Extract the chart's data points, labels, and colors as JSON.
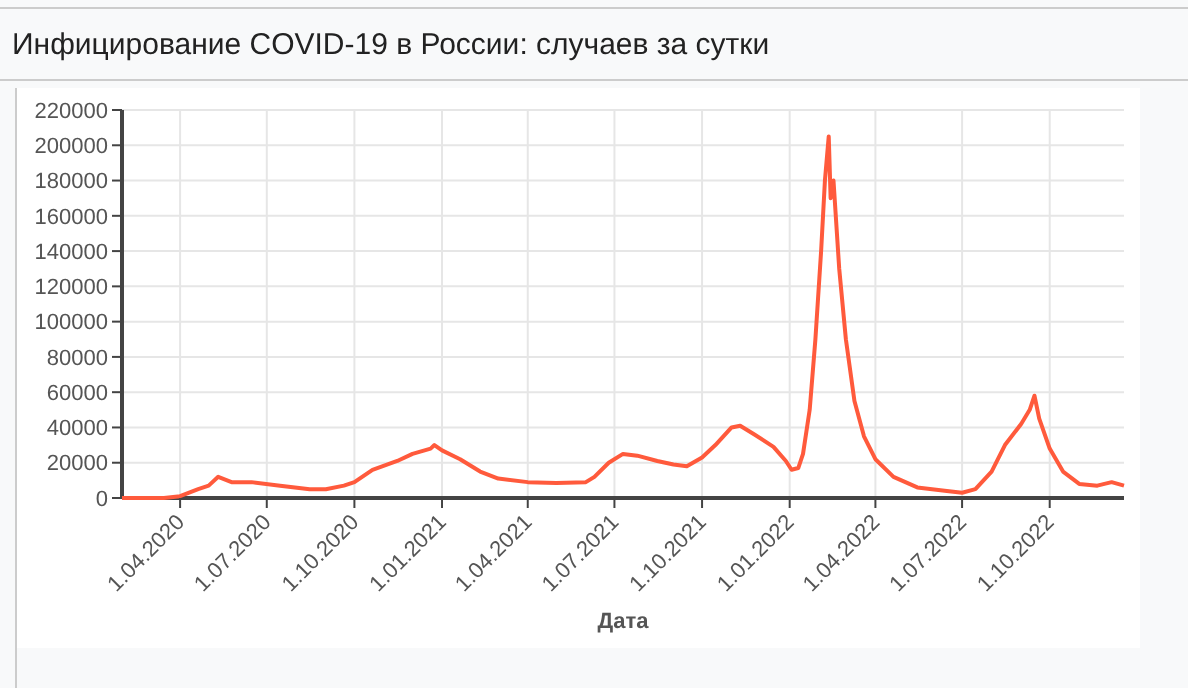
{
  "chart_data": {
    "type": "line",
    "title": "Инфицирование COVID-19 в России: случаев за сутки",
    "xlabel": "Дата",
    "grid": true,
    "marker": "none",
    "line_style": "solid",
    "xlim": [
      "2020-01-31",
      "2022-12-18"
    ],
    "xticks": [
      {
        "value": "2020-04-01",
        "label": "1.04.2020"
      },
      {
        "value": "2020-07-01",
        "label": "1.07.2020"
      },
      {
        "value": "2020-10-01",
        "label": "1.10.2020"
      },
      {
        "value": "2021-01-01",
        "label": "1.01.2021"
      },
      {
        "value": "2021-04-01",
        "label": "1.04.2021"
      },
      {
        "value": "2021-07-01",
        "label": "1.07.2021"
      },
      {
        "value": "2021-10-01",
        "label": "1.10.2021"
      },
      {
        "value": "2022-01-01",
        "label": "1.01.2022"
      },
      {
        "value": "2022-04-01",
        "label": "1.04.2022"
      },
      {
        "value": "2022-07-01",
        "label": "1.07.2022"
      },
      {
        "value": "2022-10-01",
        "label": "1.10.2022"
      }
    ],
    "ylim": [
      0,
      220000
    ],
    "yticks": [
      0,
      20000,
      40000,
      60000,
      80000,
      100000,
      120000,
      140000,
      160000,
      180000,
      200000,
      220000
    ],
    "x": [
      "2020-01-31",
      "2020-03-15",
      "2020-04-01",
      "2020-04-20",
      "2020-05-01",
      "2020-05-11",
      "2020-05-25",
      "2020-06-15",
      "2020-07-15",
      "2020-08-15",
      "2020-09-01",
      "2020-09-20",
      "2020-10-01",
      "2020-10-20",
      "2020-11-15",
      "2020-12-01",
      "2020-12-20",
      "2020-12-24",
      "2021-01-01",
      "2021-01-20",
      "2021-02-10",
      "2021-03-01",
      "2021-04-01",
      "2021-05-01",
      "2021-06-01",
      "2021-06-10",
      "2021-06-25",
      "2021-07-10",
      "2021-07-25",
      "2021-08-15",
      "2021-09-01",
      "2021-09-15",
      "2021-10-01",
      "2021-10-15",
      "2021-11-01",
      "2021-11-10",
      "2021-11-25",
      "2021-12-15",
      "2021-12-28",
      "2022-01-03",
      "2022-01-10",
      "2022-01-15",
      "2022-01-22",
      "2022-01-28",
      "2022-02-03",
      "2022-02-07",
      "2022-02-11",
      "2022-02-13",
      "2022-02-16",
      "2022-02-22",
      "2022-03-01",
      "2022-03-10",
      "2022-03-20",
      "2022-04-01",
      "2022-04-20",
      "2022-05-15",
      "2022-06-15",
      "2022-07-01",
      "2022-07-15",
      "2022-08-01",
      "2022-08-15",
      "2022-09-01",
      "2022-09-10",
      "2022-09-15",
      "2022-09-20",
      "2022-10-01",
      "2022-10-15",
      "2022-11-01",
      "2022-11-20",
      "2022-12-05",
      "2022-12-18"
    ],
    "series": [
      {
        "color": "#ff5a3c",
        "values": [
          0,
          0,
          1000,
          5000,
          7000,
          12000,
          9000,
          9000,
          7000,
          5000,
          5000,
          7000,
          9000,
          16000,
          21000,
          25000,
          28000,
          30000,
          27000,
          22000,
          15000,
          11000,
          9000,
          8500,
          9000,
          12000,
          20000,
          25000,
          24000,
          21000,
          19000,
          18000,
          23000,
          30000,
          40000,
          41000,
          36000,
          29000,
          21000,
          16000,
          17000,
          25000,
          50000,
          90000,
          140000,
          180000,
          205000,
          170000,
          180000,
          130000,
          90000,
          55000,
          35000,
          22000,
          12000,
          6000,
          4000,
          3000,
          5000,
          15000,
          30000,
          42000,
          50000,
          58000,
          45000,
          28000,
          15000,
          8000,
          7000,
          9000,
          7000
        ]
      }
    ]
  }
}
